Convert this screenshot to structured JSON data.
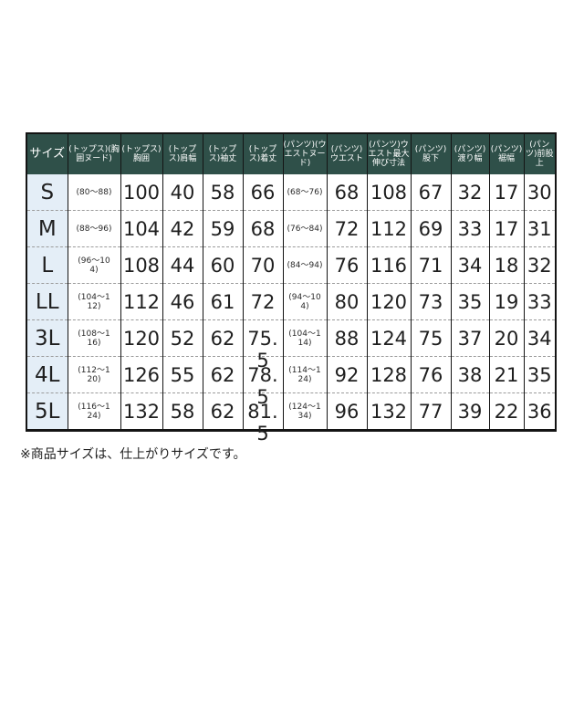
{
  "note": "※商品サイズは、仕上がりサイズです。",
  "size_chart": {
    "columns": [
      "サイズ",
      "(トップス)(胸囲ヌード)",
      "(トップス)胸囲",
      "(トップス)肩幅",
      "(トップス)袖丈",
      "(トップス)着丈",
      "(パンツ)(ウエストヌード)",
      "(パンツ)ウエスト",
      "(パンツ)ウエスト最大伸び寸法",
      "(パンツ)股下",
      "(パンツ)渡り幅",
      "(パンツ)裾幅",
      "(パンツ)前股上"
    ],
    "rows": [
      {
        "size": "S",
        "values": [
          "(80～88)",
          "100",
          "40",
          "58",
          "66",
          "(68～76)",
          "68",
          "108",
          "67",
          "32",
          "17",
          "30"
        ]
      },
      {
        "size": "M",
        "values": [
          "(88～96)",
          "104",
          "42",
          "59",
          "68",
          "(76～84)",
          "72",
          "112",
          "69",
          "33",
          "17",
          "31"
        ]
      },
      {
        "size": "L",
        "values": [
          "(96～104)",
          "108",
          "44",
          "60",
          "70",
          "(84～94)",
          "76",
          "116",
          "71",
          "34",
          "18",
          "32"
        ]
      },
      {
        "size": "LL",
        "values": [
          "(104～112)",
          "112",
          "46",
          "61",
          "72",
          "(94～104)",
          "80",
          "120",
          "73",
          "35",
          "19",
          "33"
        ]
      },
      {
        "size": "3L",
        "values": [
          "(108～116)",
          "120",
          "52",
          "62",
          "75.5",
          "(104～114)",
          "88",
          "124",
          "75",
          "37",
          "20",
          "34"
        ]
      },
      {
        "size": "4L",
        "values": [
          "(112～120)",
          "126",
          "55",
          "62",
          "78.5",
          "(114～124)",
          "92",
          "128",
          "76",
          "38",
          "21",
          "35"
        ]
      },
      {
        "size": "5L",
        "values": [
          "(116～124)",
          "132",
          "58",
          "62",
          "81.5",
          "(124～134)",
          "96",
          "132",
          "77",
          "39",
          "22",
          "36"
        ]
      }
    ]
  },
  "colors": {
    "header_bg": "#2f5049",
    "header_text": "#ffffff",
    "size_col_bg": "#e4eef7",
    "border": "#141414",
    "row_divider": "#9b9b9b",
    "text": "#1f1f1f"
  }
}
